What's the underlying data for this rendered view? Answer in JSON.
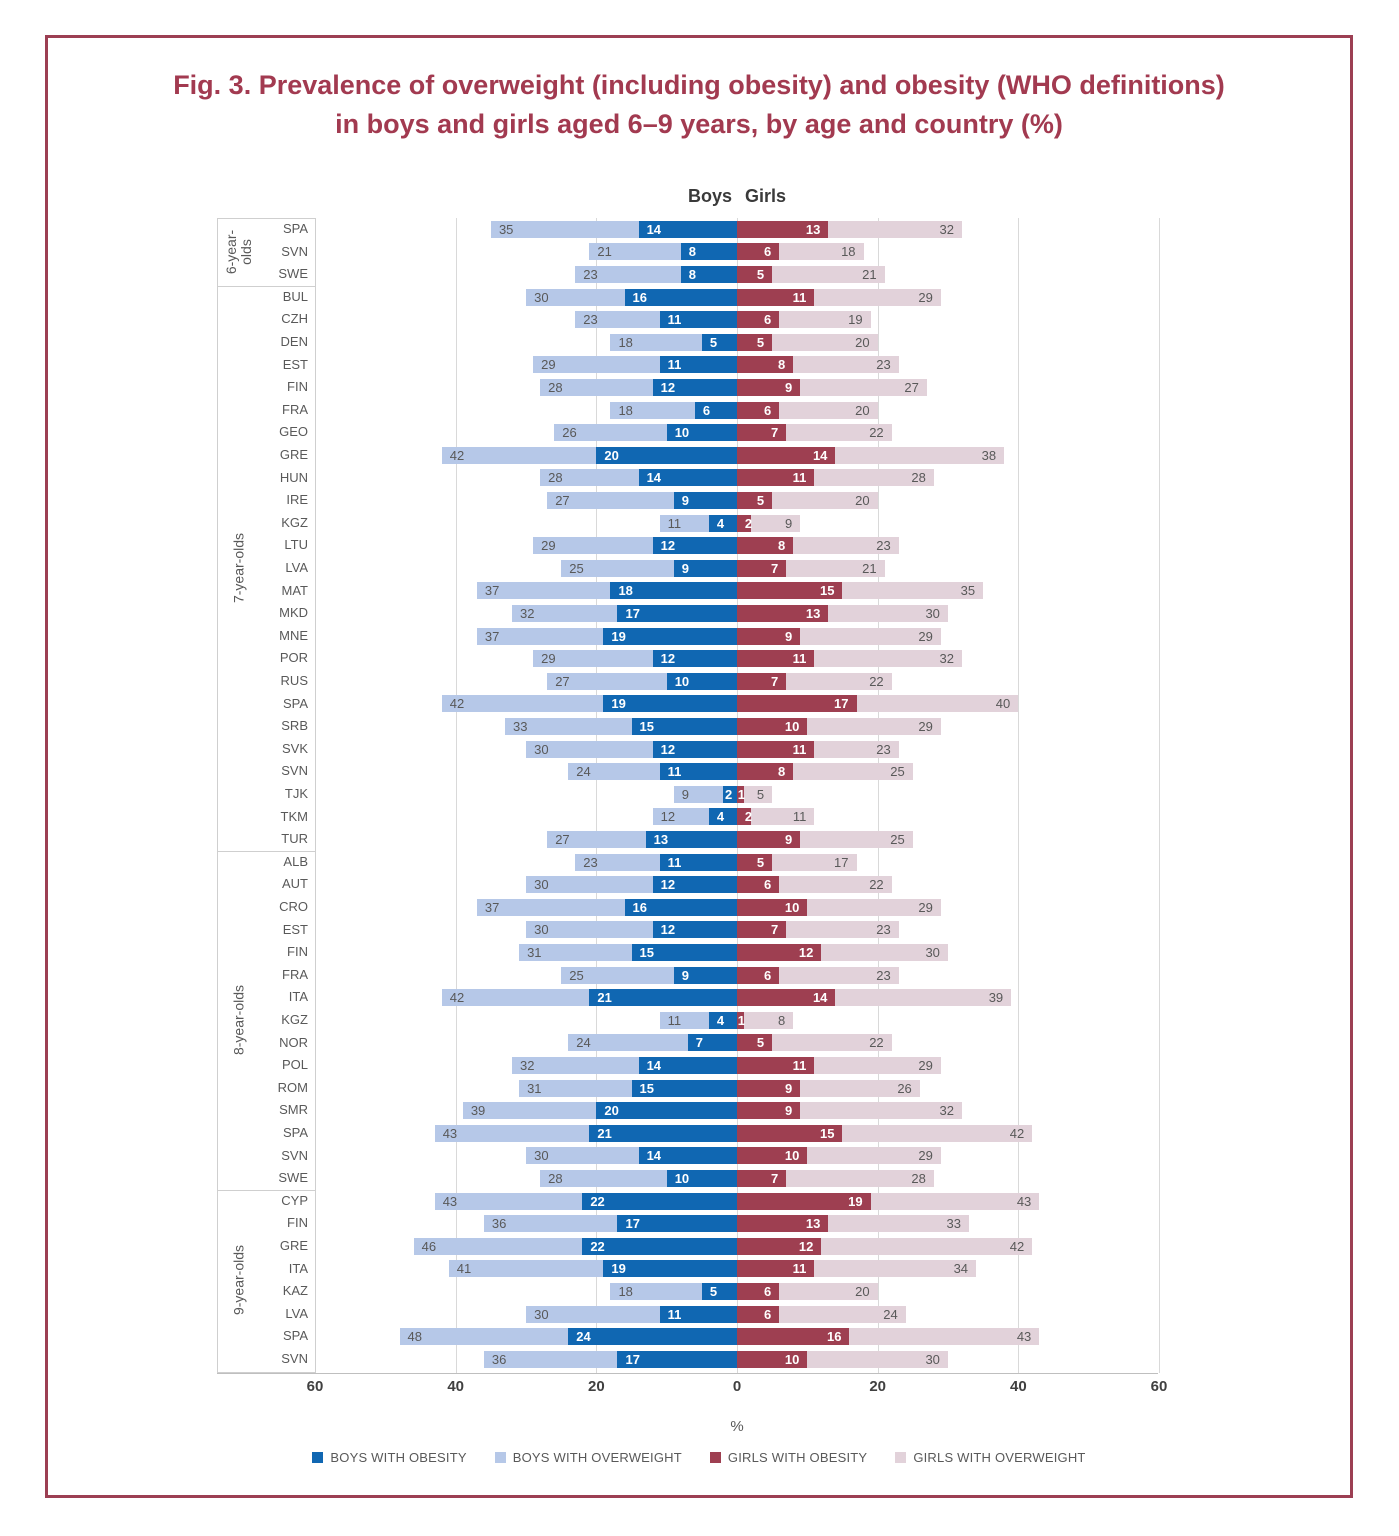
{
  "title": {
    "line1": "Fig. 3. Prevalence of overweight (including obesity) and obesity (WHO definitions)",
    "line2": "in boys and girls aged 6–9 years, by age and country (%)"
  },
  "chart_data": {
    "type": "bar",
    "orientation": "horizontal-diverging",
    "column_headers": {
      "boys": "Boys",
      "girls": "Girls"
    },
    "xlabel": "%",
    "axis_ticks": [
      "60",
      "40",
      "20",
      "0",
      "20",
      "40",
      "60"
    ],
    "xlim_each_side": 60,
    "grid": true,
    "legend_position": "bottom",
    "legend": [
      {
        "key": "boys_obesity",
        "name": "BOYS WITH OBESITY",
        "color": "#1067b2"
      },
      {
        "key": "boys_overweight",
        "name": "BOYS WITH OVERWEIGHT",
        "color": "#b6c8e8"
      },
      {
        "key": "girls_obesity",
        "name": "GIRLS WITH OBESITY",
        "color": "#9e3f51"
      },
      {
        "key": "girls_overweight",
        "name": "GIRLS WITH OVERWEIGHT",
        "color": "#e2d2da"
      }
    ],
    "groups": [
      {
        "age_group": "6-year-olds",
        "rows": [
          {
            "country": "SPA",
            "boys_overweight": 35,
            "boys_obesity": 14,
            "girls_obesity": 13,
            "girls_overweight": 32
          },
          {
            "country": "SVN",
            "boys_overweight": 21,
            "boys_obesity": 8,
            "girls_obesity": 6,
            "girls_overweight": 18
          },
          {
            "country": "SWE",
            "boys_overweight": 23,
            "boys_obesity": 8,
            "girls_obesity": 5,
            "girls_overweight": 21
          }
        ]
      },
      {
        "age_group": "7-year-olds",
        "rows": [
          {
            "country": "BUL",
            "boys_overweight": 30,
            "boys_obesity": 16,
            "girls_obesity": 11,
            "girls_overweight": 29
          },
          {
            "country": "CZH",
            "boys_overweight": 23,
            "boys_obesity": 11,
            "girls_obesity": 6,
            "girls_overweight": 19
          },
          {
            "country": "DEN",
            "boys_overweight": 18,
            "boys_obesity": 5,
            "girls_obesity": 5,
            "girls_overweight": 20
          },
          {
            "country": "EST",
            "boys_overweight": 29,
            "boys_obesity": 11,
            "girls_obesity": 8,
            "girls_overweight": 23
          },
          {
            "country": "FIN",
            "boys_overweight": 28,
            "boys_obesity": 12,
            "girls_obesity": 9,
            "girls_overweight": 27
          },
          {
            "country": "FRA",
            "boys_overweight": 18,
            "boys_obesity": 6,
            "girls_obesity": 6,
            "girls_overweight": 20
          },
          {
            "country": "GEO",
            "boys_overweight": 26,
            "boys_obesity": 10,
            "girls_obesity": 7,
            "girls_overweight": 22
          },
          {
            "country": "GRE",
            "boys_overweight": 42,
            "boys_obesity": 20,
            "girls_obesity": 14,
            "girls_overweight": 38
          },
          {
            "country": "HUN",
            "boys_overweight": 28,
            "boys_obesity": 14,
            "girls_obesity": 11,
            "girls_overweight": 28
          },
          {
            "country": "IRE",
            "boys_overweight": 27,
            "boys_obesity": 9,
            "girls_obesity": 5,
            "girls_overweight": 20
          },
          {
            "country": "KGZ",
            "boys_overweight": 11,
            "boys_obesity": 4,
            "girls_obesity": 2,
            "girls_overweight": 9
          },
          {
            "country": "LTU",
            "boys_overweight": 29,
            "boys_obesity": 12,
            "girls_obesity": 8,
            "girls_overweight": 23
          },
          {
            "country": "LVA",
            "boys_overweight": 25,
            "boys_obesity": 9,
            "girls_obesity": 7,
            "girls_overweight": 21
          },
          {
            "country": "MAT",
            "boys_overweight": 37,
            "boys_obesity": 18,
            "girls_obesity": 15,
            "girls_overweight": 35
          },
          {
            "country": "MKD",
            "boys_overweight": 32,
            "boys_obesity": 17,
            "girls_obesity": 13,
            "girls_overweight": 30
          },
          {
            "country": "MNE",
            "boys_overweight": 37,
            "boys_obesity": 19,
            "girls_obesity": 9,
            "girls_overweight": 29
          },
          {
            "country": "POR",
            "boys_overweight": 29,
            "boys_obesity": 12,
            "girls_obesity": 11,
            "girls_overweight": 32
          },
          {
            "country": "RUS",
            "boys_overweight": 27,
            "boys_obesity": 10,
            "girls_obesity": 7,
            "girls_overweight": 22
          },
          {
            "country": "SPA",
            "boys_overweight": 42,
            "boys_obesity": 19,
            "girls_obesity": 17,
            "girls_overweight": 40
          },
          {
            "country": "SRB",
            "boys_overweight": 33,
            "boys_obesity": 15,
            "girls_obesity": 10,
            "girls_overweight": 29
          },
          {
            "country": "SVK",
            "boys_overweight": 30,
            "boys_obesity": 12,
            "girls_obesity": 11,
            "girls_overweight": 23
          },
          {
            "country": "SVN",
            "boys_overweight": 24,
            "boys_obesity": 11,
            "girls_obesity": 8,
            "girls_overweight": 25
          },
          {
            "country": "TJK",
            "boys_overweight": 9,
            "boys_obesity": 2,
            "girls_obesity": 1,
            "girls_overweight": 5
          },
          {
            "country": "TKM",
            "boys_overweight": 12,
            "boys_obesity": 4,
            "girls_obesity": 2,
            "girls_overweight": 11
          },
          {
            "country": "TUR",
            "boys_overweight": 27,
            "boys_obesity": 13,
            "girls_obesity": 9,
            "girls_overweight": 25
          }
        ]
      },
      {
        "age_group": "8-year-olds",
        "rows": [
          {
            "country": "ALB",
            "boys_overweight": 23,
            "boys_obesity": 11,
            "girls_obesity": 5,
            "girls_overweight": 17
          },
          {
            "country": "AUT",
            "boys_overweight": 30,
            "boys_obesity": 12,
            "girls_obesity": 6,
            "girls_overweight": 22
          },
          {
            "country": "CRO",
            "boys_overweight": 37,
            "boys_obesity": 16,
            "girls_obesity": 10,
            "girls_overweight": 29
          },
          {
            "country": "EST",
            "boys_overweight": 30,
            "boys_obesity": 12,
            "girls_obesity": 7,
            "girls_overweight": 23
          },
          {
            "country": "FIN",
            "boys_overweight": 31,
            "boys_obesity": 15,
            "girls_obesity": 12,
            "girls_overweight": 30
          },
          {
            "country": "FRA",
            "boys_overweight": 25,
            "boys_obesity": 9,
            "girls_obesity": 6,
            "girls_overweight": 23
          },
          {
            "country": "ITA",
            "boys_overweight": 42,
            "boys_obesity": 21,
            "girls_obesity": 14,
            "girls_overweight": 39
          },
          {
            "country": "KGZ",
            "boys_overweight": 11,
            "boys_obesity": 4,
            "girls_obesity": 1,
            "girls_overweight": 8
          },
          {
            "country": "NOR",
            "boys_overweight": 24,
            "boys_obesity": 7,
            "girls_obesity": 5,
            "girls_overweight": 22
          },
          {
            "country": "POL",
            "boys_overweight": 32,
            "boys_obesity": 14,
            "girls_obesity": 11,
            "girls_overweight": 29
          },
          {
            "country": "ROM",
            "boys_overweight": 31,
            "boys_obesity": 15,
            "girls_obesity": 9,
            "girls_overweight": 26
          },
          {
            "country": "SMR",
            "boys_overweight": 39,
            "boys_obesity": 20,
            "girls_obesity": 9,
            "girls_overweight": 32
          },
          {
            "country": "SPA",
            "boys_overweight": 43,
            "boys_obesity": 21,
            "girls_obesity": 15,
            "girls_overweight": 42
          },
          {
            "country": "SVN",
            "boys_overweight": 30,
            "boys_obesity": 14,
            "girls_obesity": 10,
            "girls_overweight": 29
          },
          {
            "country": "SWE",
            "boys_overweight": 28,
            "boys_obesity": 10,
            "girls_obesity": 7,
            "girls_overweight": 28
          }
        ]
      },
      {
        "age_group": "9-year-olds",
        "rows": [
          {
            "country": "CYP",
            "boys_overweight": 43,
            "boys_obesity": 22,
            "girls_obesity": 19,
            "girls_overweight": 43
          },
          {
            "country": "FIN",
            "boys_overweight": 36,
            "boys_obesity": 17,
            "girls_obesity": 13,
            "girls_overweight": 33
          },
          {
            "country": "GRE",
            "boys_overweight": 46,
            "boys_obesity": 22,
            "girls_obesity": 12,
            "girls_overweight": 42
          },
          {
            "country": "ITA",
            "boys_overweight": 41,
            "boys_obesity": 19,
            "girls_obesity": 11,
            "girls_overweight": 34
          },
          {
            "country": "KAZ",
            "boys_overweight": 18,
            "boys_obesity": 5,
            "girls_obesity": 6,
            "girls_overweight": 20
          },
          {
            "country": "LVA",
            "boys_overweight": 30,
            "boys_obesity": 11,
            "girls_obesity": 6,
            "girls_overweight": 24
          },
          {
            "country": "SPA",
            "boys_overweight": 48,
            "boys_obesity": 24,
            "girls_obesity": 16,
            "girls_overweight": 43
          },
          {
            "country": "SVN",
            "boys_overweight": 36,
            "boys_obesity": 17,
            "girls_obesity": 10,
            "girls_overweight": 30
          }
        ]
      }
    ]
  }
}
